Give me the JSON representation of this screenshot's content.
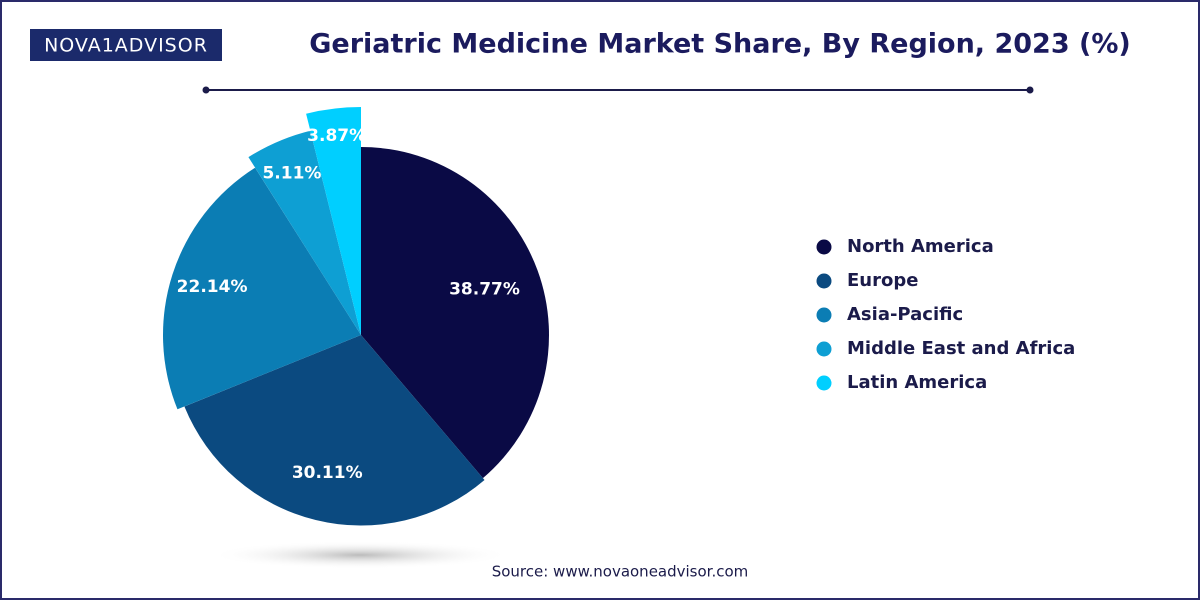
{
  "logo": "NOVA1ADVISOR",
  "chart_data": {
    "type": "pie",
    "title": "Geriatric Medicine Market Share, By Region, 2023 (%)",
    "categories": [
      "North America",
      "Europe",
      "Asia-Pacific",
      "Middle East and Africa",
      "Latin America"
    ],
    "values": [
      38.77,
      30.11,
      22.14,
      5.11,
      3.87
    ],
    "value_labels": [
      "38.77%",
      "30.11%",
      "22.14%",
      "5.11%",
      "3.87%"
    ],
    "colors": [
      "#0a0a45",
      "#0b4a80",
      "#0b7db4",
      "#0e9fd3",
      "#00cfff"
    ],
    "source": "Source: www.novaoneadvisor.com"
  }
}
